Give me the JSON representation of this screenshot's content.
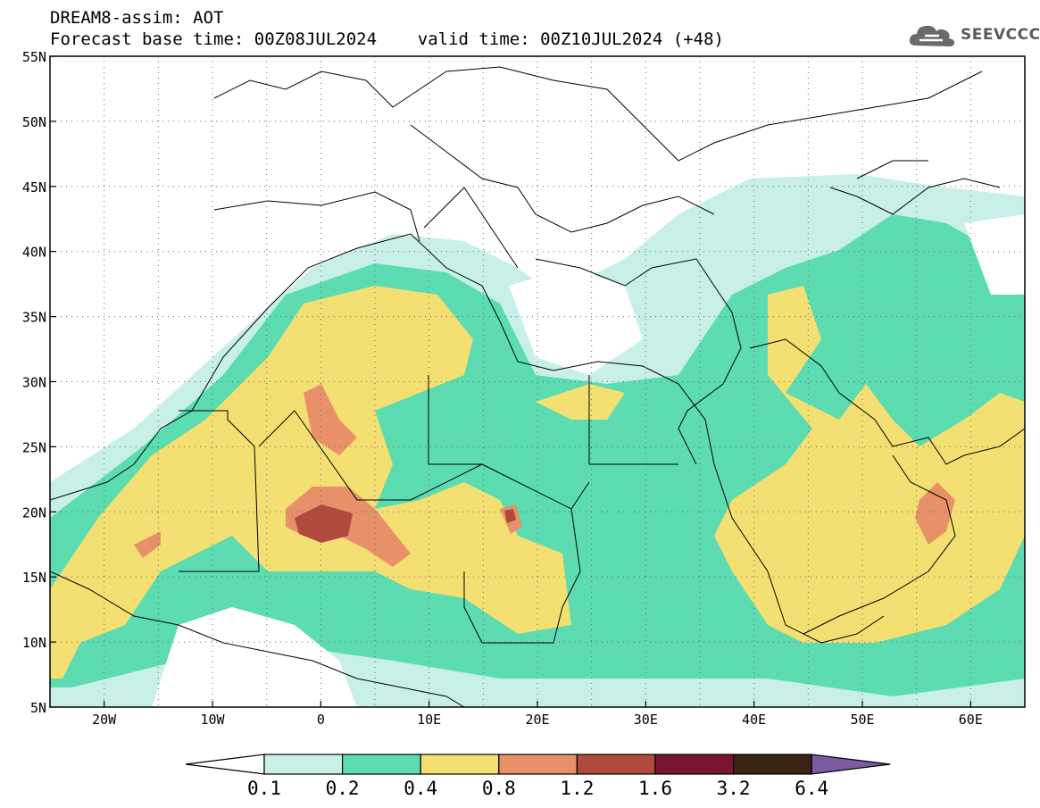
{
  "header": {
    "line1": "DREAM8-assim: AOT",
    "line2": "Forecast base time: 00Z08JUL2024    valid time: 00Z10JUL2024 (+48)"
  },
  "logo": {
    "text": "SEEVCCC",
    "icon": "cloud-icon"
  },
  "map": {
    "lon_range": [
      -25,
      65
    ],
    "lat_range": [
      5,
      55
    ],
    "lat_labels": [
      "55N",
      "50N",
      "45N",
      "40N",
      "35N",
      "30N",
      "25N",
      "20N",
      "15N",
      "10N",
      "5N"
    ],
    "lon_labels": [
      "20W",
      "10W",
      "0",
      "10E",
      "20E",
      "30E",
      "40E",
      "50E",
      "60E"
    ],
    "grid": true
  },
  "colorbar": {
    "ticks": [
      "0.1",
      "0.2",
      "0.4",
      "0.8",
      "1.2",
      "1.6",
      "3.2",
      "6.4"
    ],
    "colors": [
      "#ffffff",
      "#c8f0e8",
      "#5cdcb0",
      "#f4e072",
      "#e8906a",
      "#b04a3c",
      "#7a1530",
      "#3a2418",
      "#7a5aa0"
    ]
  }
}
